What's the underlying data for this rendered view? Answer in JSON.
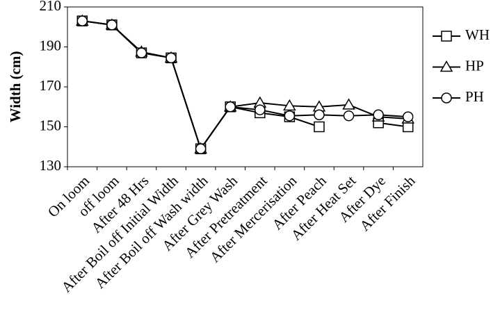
{
  "chart_data": {
    "type": "line",
    "y_label": "Width (cm)",
    "categories": [
      "On loom",
      "off loom",
      "After 48 Hrs",
      "After Boil off Initial Width",
      "After Boil off Wash width",
      "After Grey Wash",
      "After Pretreatment",
      "After Mercerisation",
      "After Peach",
      "After Heat Set",
      "After Dye",
      "After Finish"
    ],
    "series": [
      {
        "name": "WH",
        "color": "#000000",
        "marker": "square",
        "values": [
          203,
          201,
          187,
          184.5,
          139,
          160,
          157,
          155,
          150,
          null,
          152,
          150
        ]
      },
      {
        "name": "HP",
        "color": "#000000",
        "marker": "triangle",
        "values": [
          203,
          201,
          187.5,
          184.5,
          139,
          160,
          162,
          160.5,
          160,
          161,
          155,
          154
        ]
      },
      {
        "name": "PH",
        "color": "#000000",
        "marker": "circle",
        "values": [
          203,
          201,
          187,
          184.5,
          139,
          160,
          158.5,
          155.5,
          156,
          155.5,
          156,
          155
        ]
      }
    ],
    "ylim": [
      130,
      210
    ],
    "yticks": [
      130,
      150,
      170,
      190,
      210
    ],
    "legend": "right"
  }
}
